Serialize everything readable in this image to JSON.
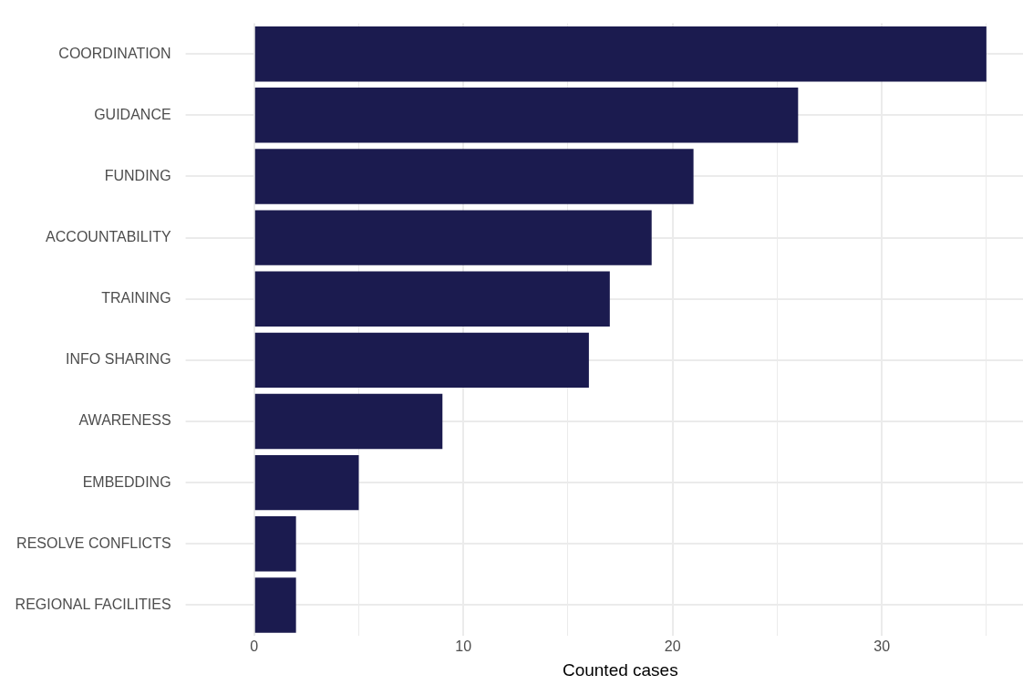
{
  "chart_data": {
    "type": "bar",
    "orientation": "horizontal",
    "xlabel": "Counted cases",
    "categories": [
      "COORDINATION",
      "GUIDANCE",
      "FUNDING",
      "ACCOUNTABILITY",
      "TRAINING",
      "INFO SHARING",
      "AWARENESS",
      "EMBEDDING",
      "RESOLVE CONFLICTS",
      "REGIONAL FACILITIES"
    ],
    "values": [
      35,
      26,
      21,
      19,
      17,
      16,
      9,
      5,
      2,
      2
    ],
    "color": "#1b1b4f",
    "xlim": [
      -1.75,
      36.75
    ],
    "xticks": [
      0,
      {
        "value": 5,
        "label": null
      },
      10,
      {
        "value": 15,
        "label": null
      },
      20,
      {
        "value": 25,
        "label": null
      },
      30,
      {
        "value": 35,
        "label": null
      }
    ],
    "grid": true,
    "legend": false
  }
}
